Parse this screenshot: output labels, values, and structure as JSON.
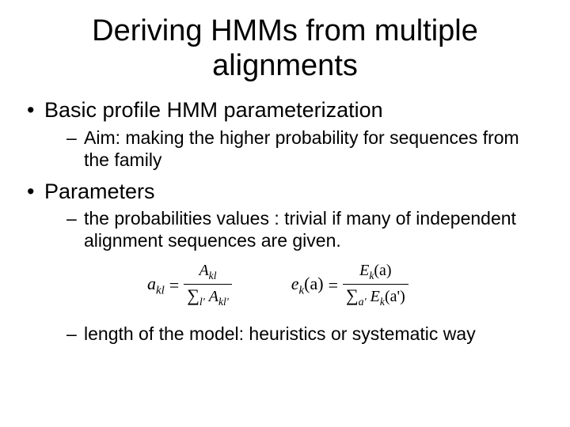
{
  "title": "Deriving HMMs from multiple alignments",
  "bullets": {
    "b1": "Basic profile HMM parameterization",
    "b1_sub1": "Aim: making the higher probability for sequences from the family",
    "b2": "Parameters",
    "b2_sub1": "the probabilities values : trivial if many of independent alignment sequences are given.",
    "b2_sub2": "length of the model: heuristics or systematic way"
  },
  "formulas": {
    "f1_lhs": "a",
    "f1_lhs_sub": "kl",
    "f1_eq": "=",
    "f1_num": "A",
    "f1_num_sub": "kl",
    "f1_den_sum": "∑",
    "f1_den_sum_sub": "l'",
    "f1_den": "A",
    "f1_den_sub": "kl'",
    "f2_lhs": "e",
    "f2_lhs_sub": "k",
    "f2_lhs_arg": "(a)",
    "f2_eq": "=",
    "f2_num": "E",
    "f2_num_sub": "k",
    "f2_num_arg": "(a)",
    "f2_den_sum": "∑",
    "f2_den_sum_sub": "a'",
    "f2_den": "E",
    "f2_den_sub": "k",
    "f2_den_arg": "(a')"
  },
  "style": {
    "background": "#ffffff",
    "text_color": "#000000",
    "title_fontsize": 38,
    "body_fontsize": 27,
    "sub_fontsize": 23,
    "formula_fontsize": 22
  }
}
